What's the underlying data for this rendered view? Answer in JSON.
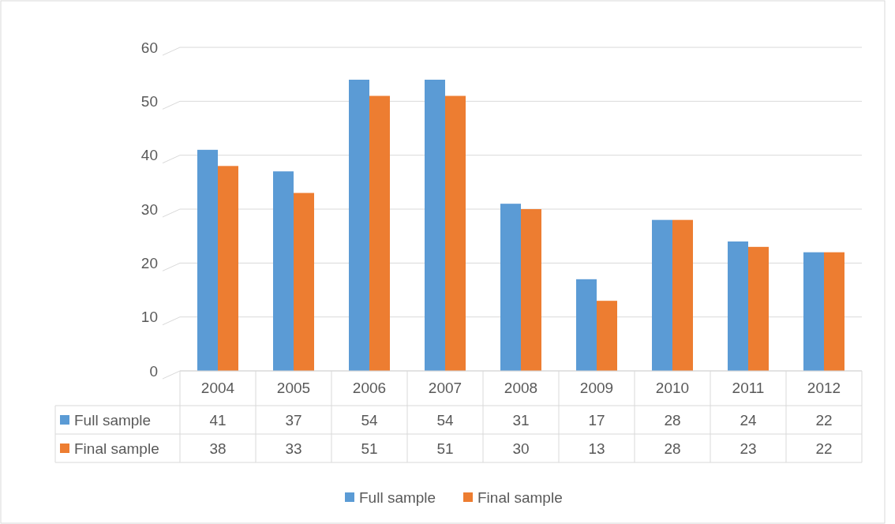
{
  "chart_data": {
    "type": "bar",
    "categories": [
      "2004",
      "2005",
      "2006",
      "2007",
      "2008",
      "2009",
      "2010",
      "2011",
      "2012"
    ],
    "series": [
      {
        "name": "Full sample",
        "color": "#5b9bd5",
        "values": [
          41,
          37,
          54,
          54,
          31,
          17,
          28,
          24,
          22
        ]
      },
      {
        "name": "Final sample",
        "color": "#ed7d31",
        "values": [
          38,
          33,
          51,
          51,
          30,
          13,
          28,
          23,
          22
        ]
      }
    ],
    "ylim": [
      0,
      60
    ],
    "yticks": [
      0,
      10,
      20,
      30,
      40,
      50,
      60
    ],
    "grid": "y",
    "legend": "bottom",
    "data_labels": true
  }
}
